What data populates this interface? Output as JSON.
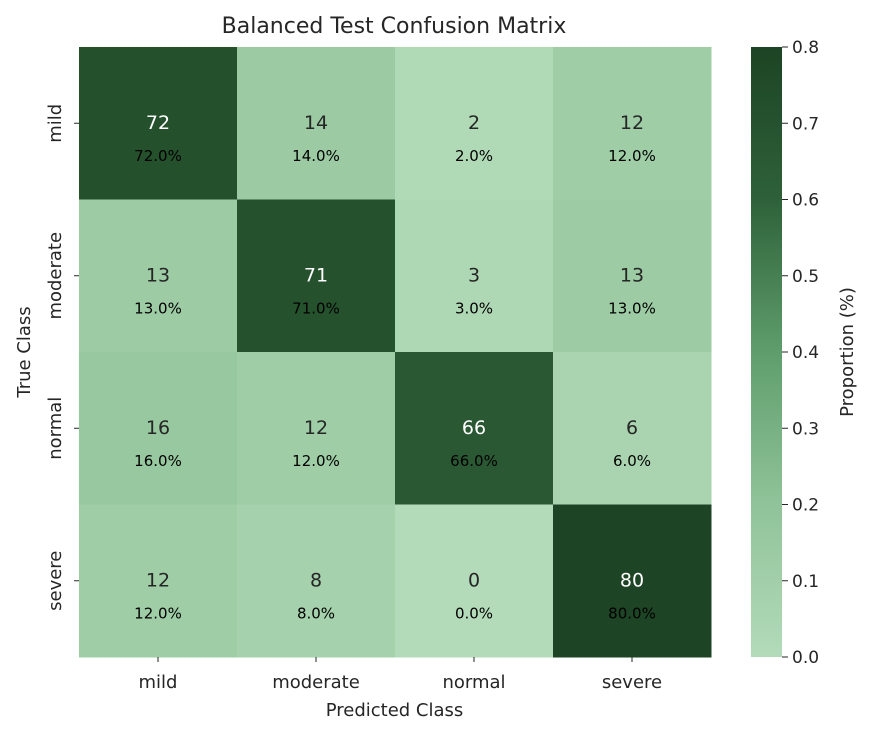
{
  "chart_data": {
    "type": "heatmap",
    "title": "Balanced Test Confusion Matrix",
    "xlabel": "Predicted Class",
    "ylabel": "True Class",
    "x_categories": [
      "mild",
      "moderate",
      "normal",
      "severe"
    ],
    "y_categories": [
      "mild",
      "moderate",
      "normal",
      "severe"
    ],
    "counts": [
      [
        72,
        14,
        2,
        12
      ],
      [
        13,
        71,
        3,
        13
      ],
      [
        16,
        12,
        66,
        6
      ],
      [
        12,
        8,
        0,
        80
      ]
    ],
    "percent_labels": [
      [
        "72.0%",
        "14.0%",
        "2.0%",
        "12.0%"
      ],
      [
        "13.0%",
        "71.0%",
        "3.0%",
        "13.0%"
      ],
      [
        "16.0%",
        "12.0%",
        "66.0%",
        "6.0%"
      ],
      [
        "12.0%",
        "8.0%",
        "0.0%",
        "80.0%"
      ]
    ],
    "proportions": [
      [
        0.72,
        0.14,
        0.02,
        0.12
      ],
      [
        0.13,
        0.71,
        0.03,
        0.13
      ],
      [
        0.16,
        0.12,
        0.66,
        0.06
      ],
      [
        0.12,
        0.08,
        0.0,
        0.8
      ]
    ],
    "colorbar": {
      "label": "Proportion (%)",
      "range": [
        0.0,
        0.8
      ],
      "ticks": [
        "0.0",
        "0.1",
        "0.2",
        "0.3",
        "0.4",
        "0.5",
        "0.6",
        "0.7",
        "0.8"
      ]
    },
    "colormap": [
      "#b3dbb9",
      "#90c399",
      "#5f9e6c",
      "#2e6139",
      "#1d4424"
    ],
    "text_colors": {
      "light": "#ffffff",
      "dark": "#262626"
    }
  }
}
